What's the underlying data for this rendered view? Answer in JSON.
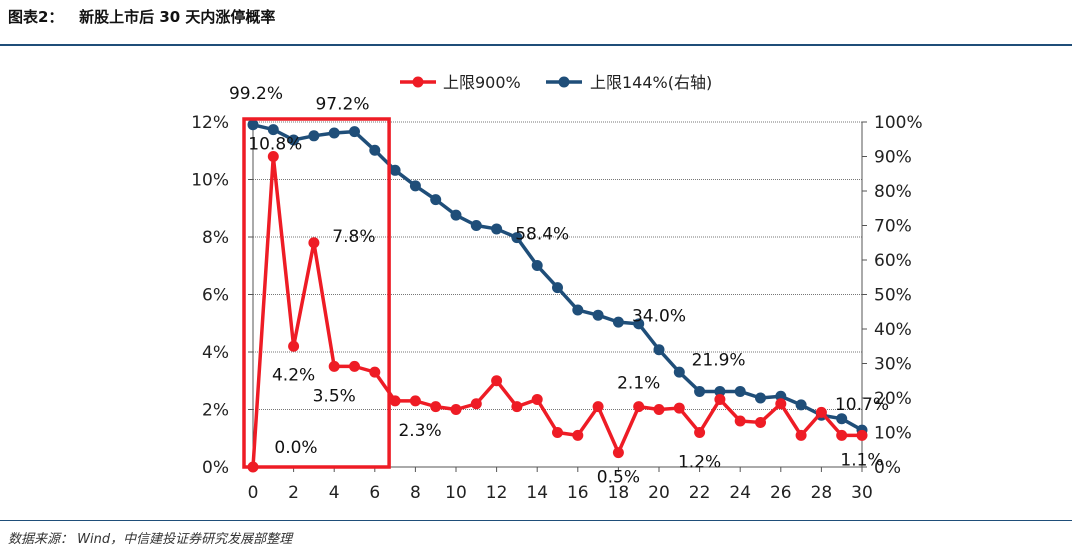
{
  "header": {
    "title": "图表2：   新股上市后 30 天内涨停概率"
  },
  "footer": {
    "source": "数据来源：  Wind，中信建投证券研究发展部整理"
  },
  "chart_data": {
    "type": "line",
    "x": [
      0,
      1,
      2,
      3,
      4,
      5,
      6,
      7,
      8,
      9,
      10,
      11,
      12,
      13,
      14,
      15,
      16,
      17,
      18,
      19,
      20,
      21,
      22,
      23,
      24,
      25,
      26,
      27,
      28,
      29,
      30
    ],
    "x_ticks": [
      "0",
      "2",
      "4",
      "6",
      "8",
      "10",
      "12",
      "14",
      "16",
      "18",
      "20",
      "22",
      "24",
      "26",
      "28",
      "30"
    ],
    "x_tick_values": [
      0,
      2,
      4,
      6,
      8,
      10,
      12,
      14,
      16,
      18,
      20,
      22,
      24,
      26,
      28,
      30
    ],
    "left_axis": {
      "range": [
        0,
        12
      ],
      "ticks": [
        "0%",
        "2%",
        "4%",
        "6%",
        "8%",
        "10%",
        "12%"
      ],
      "tick_values": [
        0,
        2,
        4,
        6,
        8,
        10,
        12
      ]
    },
    "right_axis": {
      "range": [
        0,
        100
      ],
      "ticks": [
        "0%",
        "10%",
        "20%",
        "30%",
        "40%",
        "50%",
        "60%",
        "70%",
        "80%",
        "90%",
        "100%"
      ],
      "tick_values": [
        0,
        10,
        20,
        30,
        40,
        50,
        60,
        70,
        80,
        90,
        100
      ]
    },
    "series": [
      {
        "name": "上限900%",
        "axis": "left",
        "color": "#ee1c25",
        "values": [
          0.0,
          10.8,
          4.2,
          7.8,
          3.5,
          3.5,
          3.3,
          2.3,
          2.3,
          2.1,
          2.0,
          2.2,
          3.0,
          2.1,
          2.35,
          1.2,
          1.1,
          2.1,
          0.5,
          2.1,
          2.0,
          2.05,
          1.2,
          2.35,
          1.6,
          1.55,
          2.2,
          1.1,
          1.9,
          1.1,
          1.1
        ]
      },
      {
        "name": "上限144%(右轴)",
        "axis": "right",
        "color": "#1f4e79",
        "values": [
          99.2,
          97.8,
          94.8,
          96.0,
          96.8,
          97.2,
          91.8,
          86.0,
          81.5,
          77.5,
          73.0,
          70.0,
          69.0,
          66.5,
          58.4,
          52.0,
          45.5,
          44.0,
          42.0,
          41.5,
          34.0,
          27.5,
          21.9,
          21.9,
          21.9,
          20.0,
          20.5,
          18.0,
          15.0,
          14.0,
          10.7
        ]
      }
    ],
    "annotations": [
      {
        "text": "99.2%",
        "series": 1,
        "index": 0
      },
      {
        "text": "97.2%",
        "series": 1,
        "index": 5
      },
      {
        "text": "58.4%",
        "series": 1,
        "index": 14
      },
      {
        "text": "34.0%",
        "series": 1,
        "index": 20
      },
      {
        "text": "21.9%",
        "series": 1,
        "index": 22
      },
      {
        "text": "10.7%",
        "series": 1,
        "index": 30
      },
      {
        "text": "10.8%",
        "series": 0,
        "index": 1
      },
      {
        "text": "7.8%",
        "series": 0,
        "index": 3
      },
      {
        "text": "4.2%",
        "series": 0,
        "index": 2
      },
      {
        "text": "3.5%",
        "series": 0,
        "index": 4
      },
      {
        "text": "2.3%",
        "series": 0,
        "index": 7
      },
      {
        "text": "0.0%",
        "series": 0,
        "index": 0
      },
      {
        "text": "2.1%",
        "series": 0,
        "index": 19
      },
      {
        "text": "0.5%",
        "series": 0,
        "index": 18
      },
      {
        "text": "1.2%",
        "series": 0,
        "index": 22
      },
      {
        "text": "1.1%",
        "series": 0,
        "index": 30
      }
    ],
    "highlight": {
      "x_range": [
        0,
        7
      ],
      "color": "#ee1c25"
    },
    "legend_position": "top-center",
    "grid": true
  }
}
